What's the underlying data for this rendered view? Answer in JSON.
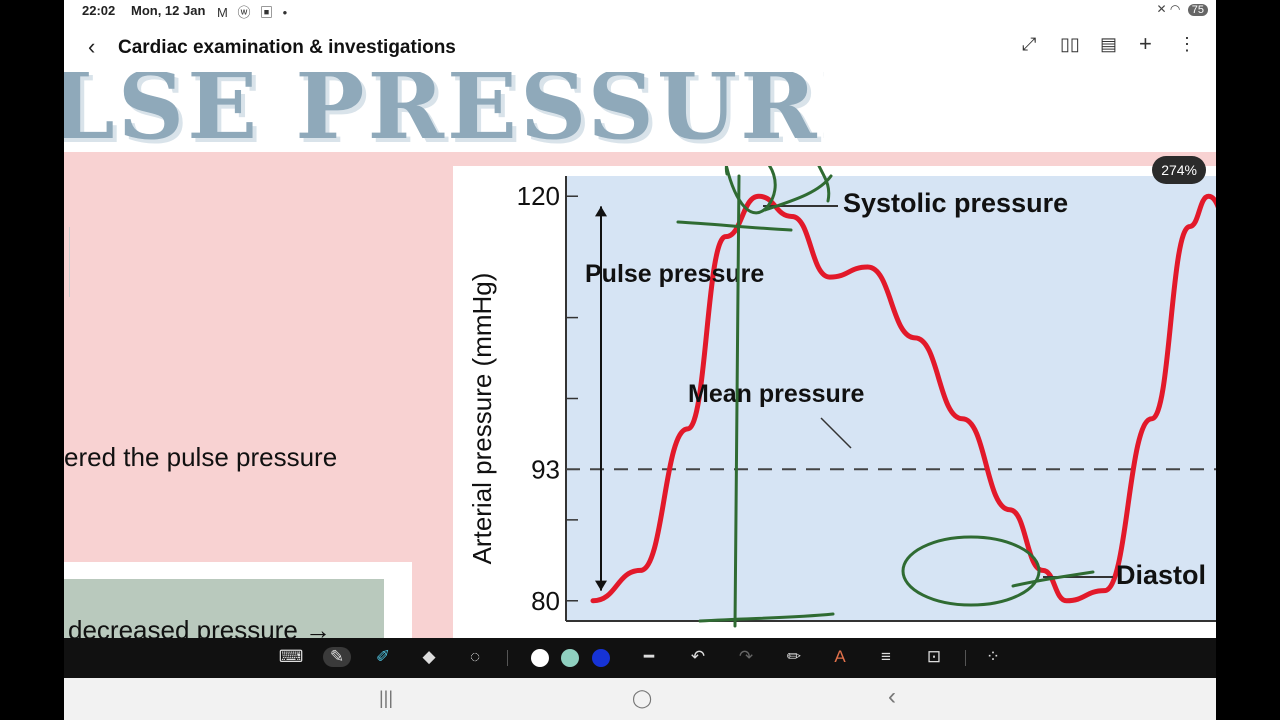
{
  "status": {
    "time": "22:02",
    "date": "Mon, 12 Jan",
    "left_icons": "M ⓦ ▣ •",
    "right_icons": "✕ ◠",
    "battery": "75"
  },
  "header": {
    "title": "Cardiac examination & investigations",
    "icons": [
      "back-icon",
      "expand-icon",
      "book-icon",
      "export-icon",
      "add-icon",
      "more-icon"
    ]
  },
  "slide": {
    "banner": "LSE PRESSURE",
    "pink_text": "ered the pulse pressure",
    "green_text": "decreased pressure →"
  },
  "zoom": "274%",
  "chart_data": {
    "type": "line",
    "ylabel": "Arterial pressure (mmHg)",
    "yticks": [
      120,
      93,
      80
    ],
    "annotations": [
      "Systolic pressure",
      "Pulse pressure",
      "Mean pressure",
      "Diastol"
    ],
    "series": [
      {
        "x": [
          0.0,
          0.1,
          0.2,
          0.28,
          0.35,
          0.42,
          0.5,
          0.58,
          0.68,
          0.78,
          0.88,
          0.95,
          1.0,
          1.08,
          1.18,
          1.26,
          1.3,
          1.36
        ],
        "values": [
          80,
          83,
          97,
          116,
          120,
          118,
          112,
          113,
          106,
          98,
          89,
          83,
          80,
          81,
          98,
          117,
          120,
          115
        ],
        "color": "#e2192a"
      }
    ],
    "mean_line": 93,
    "ylim": [
      78,
      122
    ]
  },
  "toolbar": {
    "icons": [
      "keyboard-icon",
      "pen-icon",
      "highlighter-icon",
      "eraser-icon",
      "lasso-icon",
      "line-icon",
      "undo-icon",
      "redo-icon",
      "pen-settings-icon",
      "text-icon",
      "text-box-icon",
      "lock-icon",
      "grid-icon"
    ],
    "colors": [
      "#ffffff",
      "#8fd0c0",
      "#1633d6"
    ]
  },
  "navbar": {
    "recent": "|||",
    "home": "◯",
    "back": "‹"
  }
}
